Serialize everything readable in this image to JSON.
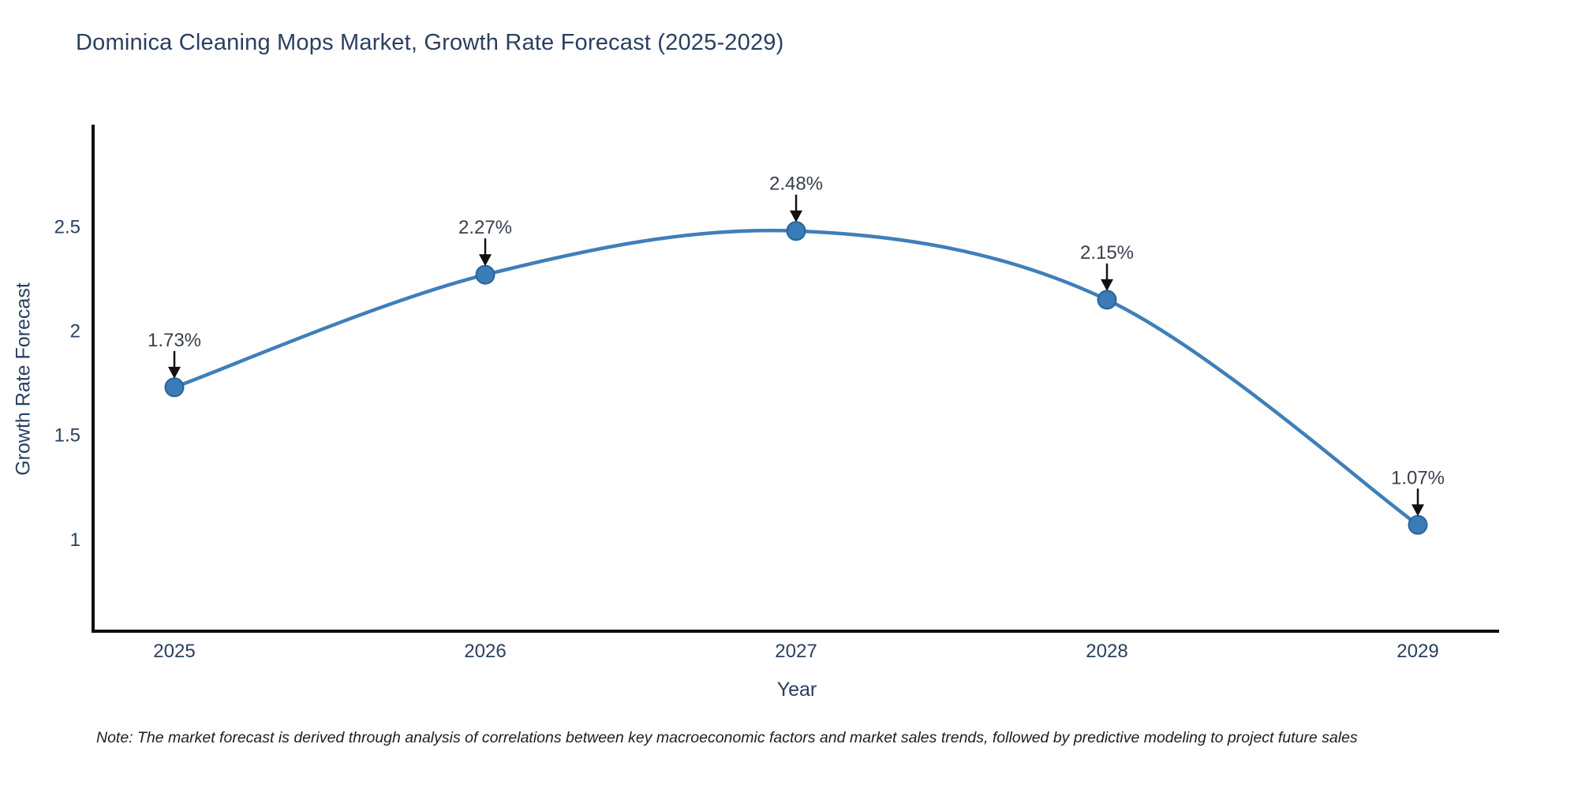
{
  "chart_data": {
    "type": "line",
    "title": "Dominica Cleaning Mops Market, Growth Rate Forecast (2025-2029)",
    "xlabel": "Year",
    "ylabel": "Growth Rate Forecast",
    "x": [
      "2025",
      "2026",
      "2027",
      "2028",
      "2029"
    ],
    "series": [
      {
        "name": "Growth Rate Forecast",
        "values": [
          1.73,
          2.27,
          2.48,
          2.15,
          1.07
        ],
        "point_labels": [
          "1.73%",
          "2.27%",
          "2.48%",
          "2.15%",
          "1.07%"
        ]
      }
    ],
    "yticks": [
      1,
      1.5,
      2,
      2.5
    ],
    "ytick_labels": [
      "1",
      "1.5",
      "2",
      "2.5"
    ],
    "ylim": [
      0.56,
      2.99
    ],
    "grid": false,
    "legend_position": "none",
    "annotations_style": "value label with down arrow to marker",
    "colors": {
      "line": "#3f7fb8",
      "marker": "#3a7cb8",
      "marker_edge": "#2a6498",
      "axis": "#0d0d0d",
      "text": "#2a3f5f",
      "annotation_text": "#39404e",
      "annotation_arrow": "#111111"
    }
  },
  "footnote": "Note: The market forecast is derived through analysis of correlations between key macroeconomic factors and market sales trends, followed by predictive modeling to project future sales"
}
